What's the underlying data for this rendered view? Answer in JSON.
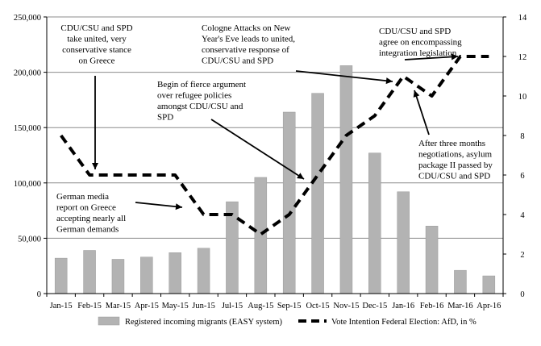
{
  "chart_data": {
    "type": "bar",
    "categories": [
      "Jan-15",
      "Feb-15",
      "Mar-15",
      "Apr-15",
      "May-15",
      "Jun-15",
      "Jul-15",
      "Aug-15",
      "Sep-15",
      "Oct-15",
      "Nov-15",
      "Dec-15",
      "Jan-16",
      "Feb-16",
      "Mar-16",
      "Apr-16"
    ],
    "series": [
      {
        "name": "Registered incoming migrants (EASY system)",
        "type": "bar",
        "axis": "left",
        "color": "#b3b3b3",
        "values": [
          32000,
          39000,
          31000,
          33000,
          37000,
          41000,
          83000,
          105000,
          164000,
          181000,
          206000,
          127000,
          92000,
          61000,
          21000,
          16000
        ]
      },
      {
        "name": "Vote Intention Federal Election: AfD, in %",
        "type": "line",
        "style": "dashed",
        "axis": "right",
        "color": "#000000",
        "values": [
          8,
          6,
          6,
          6,
          6,
          4,
          4,
          3,
          4,
          6,
          8,
          9,
          11,
          10,
          12,
          12
        ]
      }
    ],
    "y_left": {
      "ylim": [
        0,
        250000
      ],
      "ticks": [
        "0",
        "50,000",
        "100,000",
        "150,000",
        "200,000",
        "250,000"
      ]
    },
    "y_right": {
      "ylim": [
        0,
        14
      ],
      "ticks": [
        "0",
        "2",
        "4",
        "6",
        "8",
        "10",
        "12",
        "14"
      ]
    },
    "grid": "horizontal",
    "legend_placement": "bottom",
    "annotations": [
      {
        "id": "a1",
        "lines": [
          "CDU/CSU and SPD",
          "take united, very",
          "conservative stance",
          "on Greece"
        ],
        "anchor": "middle",
        "target_index": 1,
        "target_value": 6
      },
      {
        "id": "a2",
        "lines": [
          "German media",
          "report on Greece",
          "accepting nearly all",
          "German demands"
        ],
        "anchor": "start",
        "target_index": 5,
        "target_value": 4
      },
      {
        "id": "a3",
        "lines": [
          "Begin of fierce argument",
          "over refugee policies",
          "amongst CDU/CSU and",
          "SPD"
        ],
        "anchor": "start",
        "target_index": 9,
        "target_value": 6
      },
      {
        "id": "a4",
        "lines": [
          "Cologne Attacks on New",
          "Year's Eve leads to united,",
          "conservative response of",
          "CDU/CSU and SPD"
        ],
        "anchor": "start",
        "target_index": 12,
        "target_value": 11
      },
      {
        "id": "a5",
        "lines": [
          "CDU/CSU and SPD",
          "agree on encompassing",
          "integration legislation"
        ],
        "anchor": "start",
        "target_index": 14,
        "target_value": 12
      },
      {
        "id": "a6",
        "lines": [
          "After three months",
          "negotiations, asylum",
          "package II passed by",
          "CDU/CSU and SPD"
        ],
        "anchor": "start",
        "target_index": 12,
        "target_value": 11
      }
    ]
  }
}
